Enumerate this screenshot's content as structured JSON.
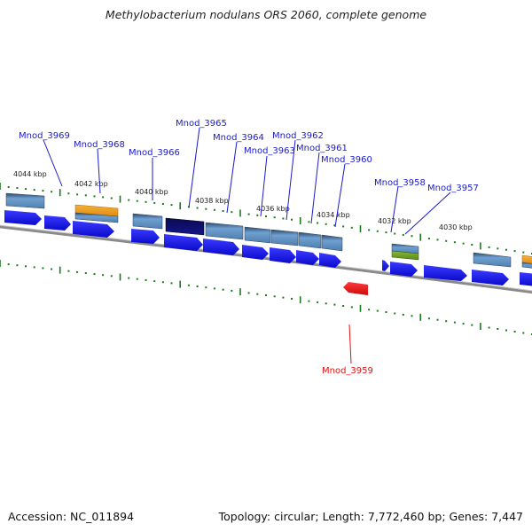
{
  "title": "Methylobacterium nodulans ORS 2060, complete genome",
  "footer": {
    "accession": "Accession: NC_011894",
    "summary": "Topology: circular; Length: 7,772,460 bp; Genes: 7,447"
  },
  "colors": {
    "forward_arrow": "#1a1aee",
    "highlight_gene": "#ee1111",
    "label_forward": "#1a1acc",
    "label_reverse": "#dd1111",
    "tick_major": "#1a7a1a",
    "tick_minor": "#1a7a1a",
    "backbone": "#8a8a8a",
    "feature_blue": "#5f8fc0",
    "feature_orange": "#f0a020",
    "feature_navy": "#0a0a70",
    "feature_green": "#6a9a2a"
  },
  "ticks": [
    {
      "label": "4044 kbp"
    },
    {
      "label": "4042 kbp"
    },
    {
      "label": "4040 kbp"
    },
    {
      "label": "4038 kbp"
    },
    {
      "label": "4036 kbp"
    },
    {
      "label": "4034 kbp"
    },
    {
      "label": "4032 kbp"
    },
    {
      "label": "4030 kbp"
    }
  ],
  "gene_labels": [
    {
      "name": "Mnod_3969"
    },
    {
      "name": "Mnod_3968"
    },
    {
      "name": "Mnod_3966"
    },
    {
      "name": "Mnod_3965"
    },
    {
      "name": "Mnod_3964"
    },
    {
      "name": "Mnod_3963"
    },
    {
      "name": "Mnod_3962"
    },
    {
      "name": "Mnod_3961"
    },
    {
      "name": "Mnod_3960"
    },
    {
      "name": "Mnod_3958"
    },
    {
      "name": "Mnod_3957"
    },
    {
      "name": "Mnod_3959"
    }
  ]
}
